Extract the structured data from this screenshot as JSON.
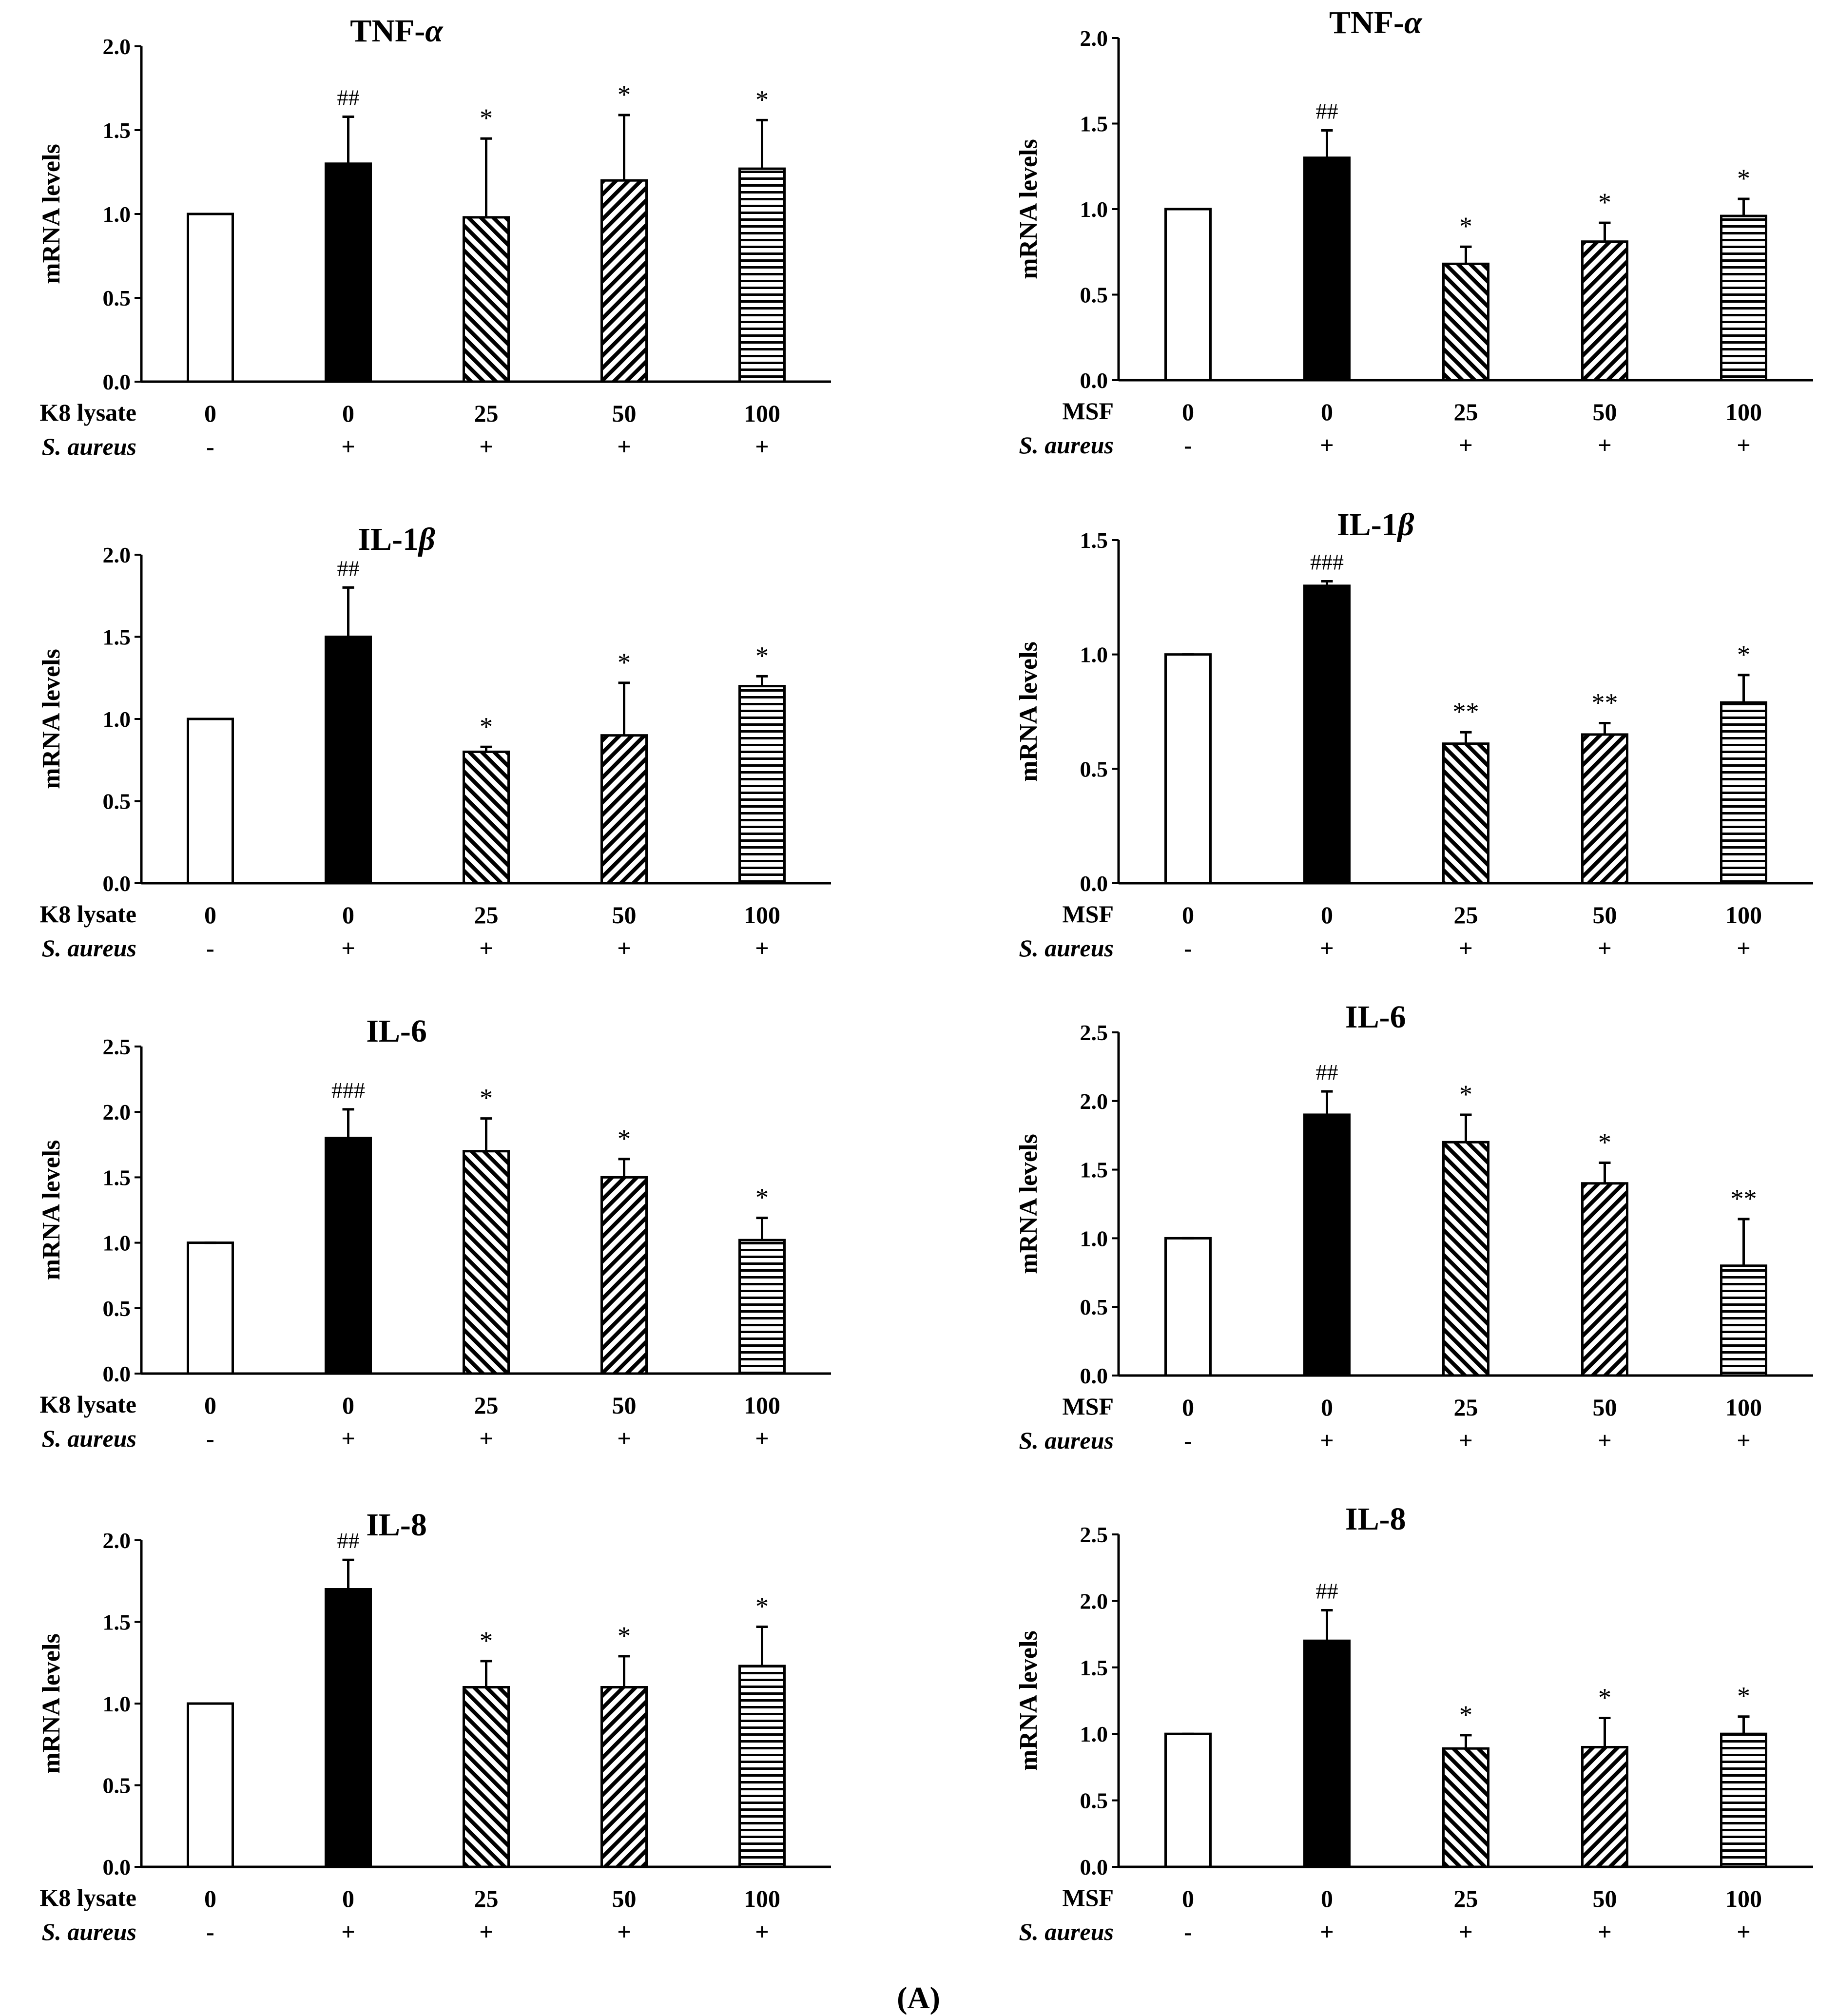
{
  "figure": {
    "panel_label": "(A)"
  },
  "colors": {
    "ink": "#000000",
    "fill_open": "#ffffff",
    "fill_solid": "#000000"
  },
  "chart_data": [
    {
      "type": "bar",
      "title": "TNF-",
      "title_symbol": "α",
      "ylabel": "mRNA levels",
      "ylim": [
        0,
        2.0
      ],
      "yticks": [
        "0.0",
        "0.5",
        "1.0",
        "1.5",
        "2.0"
      ],
      "treatment_label": "K8 lysate",
      "treatments": [
        "0",
        "0",
        "25",
        "50",
        "100"
      ],
      "infection_label": "S. aureus",
      "infection": [
        "-",
        "+",
        "+",
        "+",
        "+"
      ],
      "values": [
        1.0,
        1.3,
        0.98,
        1.2,
        1.27
      ],
      "errors": [
        0,
        0.28,
        0.47,
        0.39,
        0.29
      ],
      "annotations": [
        "",
        "##",
        "*",
        "*",
        "*"
      ],
      "patterns": [
        "open",
        "solid",
        "diag-back",
        "diag-fwd",
        "horiz"
      ]
    },
    {
      "type": "bar",
      "title": "TNF-",
      "title_symbol": "α",
      "ylabel": "mRNA levels",
      "ylim": [
        0,
        2.0
      ],
      "yticks": [
        "0.0",
        "0.5",
        "1.0",
        "1.5",
        "2.0"
      ],
      "treatment_label": "MSF",
      "treatments": [
        "0",
        "0",
        "25",
        "50",
        "100"
      ],
      "infection_label": "S. aureus",
      "infection": [
        "-",
        "+",
        "+",
        "+",
        "+"
      ],
      "values": [
        1.0,
        1.3,
        0.68,
        0.81,
        0.96
      ],
      "errors": [
        0,
        0.16,
        0.1,
        0.11,
        0.1
      ],
      "annotations": [
        "",
        "##",
        "*",
        "*",
        "*"
      ],
      "patterns": [
        "open",
        "solid",
        "diag-back",
        "diag-fwd",
        "horiz"
      ]
    },
    {
      "type": "bar",
      "title": "IL-1",
      "title_symbol": "β",
      "ylabel": "mRNA levels",
      "ylim": [
        0,
        2.0
      ],
      "yticks": [
        "0.0",
        "0.5",
        "1.0",
        "1.5",
        "2.0"
      ],
      "treatment_label": "K8 lysate",
      "treatments": [
        "0",
        "0",
        "25",
        "50",
        "100"
      ],
      "infection_label": "S. aureus",
      "infection": [
        "-",
        "+",
        "+",
        "+",
        "+"
      ],
      "values": [
        1.0,
        1.5,
        0.8,
        0.9,
        1.2
      ],
      "errors": [
        0,
        0.3,
        0.03,
        0.32,
        0.06
      ],
      "annotations": [
        "",
        "##",
        "*",
        "*",
        "*"
      ],
      "patterns": [
        "open",
        "solid",
        "diag-back",
        "diag-fwd",
        "horiz"
      ]
    },
    {
      "type": "bar",
      "title": "IL-1",
      "title_symbol": "β",
      "ylabel": "mRNA levels",
      "ylim": [
        0,
        1.5
      ],
      "yticks": [
        "0.0",
        "0.5",
        "1.0",
        "1.5"
      ],
      "treatment_label": "MSF",
      "treatments": [
        "0",
        "0",
        "25",
        "50",
        "100"
      ],
      "infection_label": "S. aureus",
      "infection": [
        "-",
        "+",
        "+",
        "+",
        "+"
      ],
      "values": [
        1.0,
        1.3,
        0.61,
        0.65,
        0.79
      ],
      "errors": [
        0,
        0.02,
        0.05,
        0.05,
        0.12
      ],
      "annotations": [
        "",
        "###",
        "**",
        "**",
        "*"
      ],
      "patterns": [
        "open",
        "solid",
        "diag-back",
        "diag-fwd",
        "horiz"
      ]
    },
    {
      "type": "bar",
      "title": "IL-6",
      "title_symbol": "",
      "ylabel": "mRNA levels",
      "ylim": [
        0,
        2.5
      ],
      "yticks": [
        "0.0",
        "0.5",
        "1.0",
        "1.5",
        "2.0",
        "2.5"
      ],
      "treatment_label": "K8 lysate",
      "treatments": [
        "0",
        "0",
        "25",
        "50",
        "100"
      ],
      "infection_label": "S. aureus",
      "infection": [
        "-",
        "+",
        "+",
        "+",
        "+"
      ],
      "values": [
        1.0,
        1.8,
        1.7,
        1.5,
        1.02
      ],
      "errors": [
        0,
        0.22,
        0.25,
        0.14,
        0.17
      ],
      "annotations": [
        "",
        "###",
        "*",
        "*",
        "*"
      ],
      "patterns": [
        "open",
        "solid",
        "diag-back",
        "diag-fwd",
        "horiz"
      ]
    },
    {
      "type": "bar",
      "title": "IL-6",
      "title_symbol": "",
      "ylabel": "mRNA levels",
      "ylim": [
        0,
        2.5
      ],
      "yticks": [
        "0.0",
        "0.5",
        "1.0",
        "1.5",
        "2.0",
        "2.5"
      ],
      "treatment_label": "MSF",
      "treatments": [
        "0",
        "0",
        "25",
        "50",
        "100"
      ],
      "infection_label": "S. aureus",
      "infection": [
        "-",
        "+",
        "+",
        "+",
        "+"
      ],
      "values": [
        1.0,
        1.9,
        1.7,
        1.4,
        0.8
      ],
      "errors": [
        0,
        0.17,
        0.2,
        0.15,
        0.34
      ],
      "annotations": [
        "",
        "##",
        "*",
        "*",
        "**"
      ],
      "patterns": [
        "open",
        "solid",
        "diag-back",
        "diag-fwd",
        "horiz"
      ]
    },
    {
      "type": "bar",
      "title": "IL-8",
      "title_symbol": "",
      "ylabel": "mRNA levels",
      "ylim": [
        0,
        2.0
      ],
      "yticks": [
        "0.0",
        "0.5",
        "1.0",
        "1.5",
        "2.0"
      ],
      "treatment_label": "K8 lysate",
      "treatments": [
        "0",
        "0",
        "25",
        "50",
        "100"
      ],
      "infection_label": "S. aureus",
      "infection": [
        "-",
        "+",
        "+",
        "+",
        "+"
      ],
      "values": [
        1.0,
        1.7,
        1.1,
        1.1,
        1.23
      ],
      "errors": [
        0,
        0.18,
        0.16,
        0.19,
        0.24
      ],
      "annotations": [
        "",
        "##",
        "*",
        "*",
        "*"
      ],
      "patterns": [
        "open",
        "solid",
        "diag-back",
        "diag-fwd",
        "horiz"
      ]
    },
    {
      "type": "bar",
      "title": "IL-8",
      "title_symbol": "",
      "ylabel": "mRNA levels",
      "ylim": [
        0,
        2.5
      ],
      "yticks": [
        "0.0",
        "0.5",
        "1.0",
        "1.5",
        "2.0",
        "2.5"
      ],
      "treatment_label": "MSF",
      "treatments": [
        "0",
        "0",
        "25",
        "50",
        "100"
      ],
      "infection_label": "S. aureus",
      "infection": [
        "-",
        "+",
        "+",
        "+",
        "+"
      ],
      "values": [
        1.0,
        1.7,
        0.89,
        0.9,
        1.0
      ],
      "errors": [
        0,
        0.23,
        0.1,
        0.22,
        0.13
      ],
      "annotations": [
        "",
        "##",
        "*",
        "*",
        "*"
      ],
      "patterns": [
        "open",
        "solid",
        "diag-back",
        "diag-fwd",
        "horiz"
      ]
    }
  ]
}
